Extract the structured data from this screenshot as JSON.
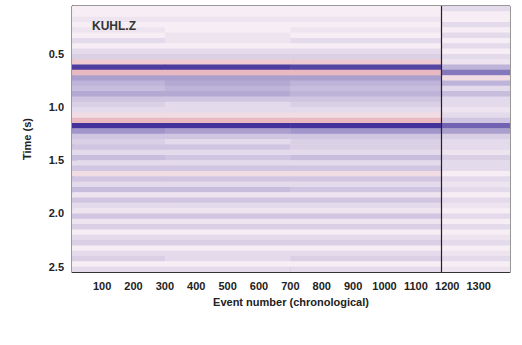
{
  "chart_data": {
    "type": "heatmap",
    "annotation": "KUHL.Z",
    "x_label": "Event number (chronological)",
    "y_label": "Time (s)",
    "xlim": [
      4,
      1400
    ],
    "ylim": [
      0.05,
      2.55
    ],
    "xticks": [
      100,
      200,
      300,
      400,
      500,
      600,
      700,
      800,
      900,
      1000,
      1100,
      1200,
      1300
    ],
    "yticks": [
      0.5,
      {
        "value": 1,
        "label": "1.0"
      },
      1.5,
      {
        "value": 2,
        "label": "2.0"
      },
      2.5
    ],
    "y_inverted": true,
    "vline": 1180,
    "color_range": [
      -1,
      1
    ],
    "x_edges": [
      4,
      300,
      700,
      1180,
      1400
    ],
    "y_edges": [
      0.05,
      0.1,
      0.15,
      0.2,
      0.25,
      0.3,
      0.35,
      0.4,
      0.45,
      0.5,
      0.55,
      0.6,
      0.65,
      0.7,
      0.75,
      0.8,
      0.85,
      0.9,
      0.95,
      1.0,
      1.05,
      1.1,
      1.15,
      1.2,
      1.25,
      1.3,
      1.35,
      1.4,
      1.45,
      1.5,
      1.55,
      1.6,
      1.65,
      1.7,
      1.75,
      1.8,
      1.85,
      1.9,
      1.95,
      2.0,
      2.05,
      2.1,
      2.15,
      2.2,
      2.25,
      2.3,
      2.35,
      2.4,
      2.45,
      2.5,
      2.55
    ],
    "cells": [
      [
        0,
        0,
        0,
        0.1
      ],
      [
        0,
        0,
        0,
        0
      ],
      [
        0.05,
        0.05,
        0.05,
        0
      ],
      [
        0,
        0,
        0,
        0.1
      ],
      [
        0.05,
        0,
        0.05,
        0
      ],
      [
        0,
        0.05,
        0,
        0.1
      ],
      [
        0.1,
        0.05,
        0.1,
        0
      ],
      [
        0,
        0,
        0,
        0.1
      ],
      [
        0.1,
        0.1,
        0.1,
        0
      ],
      [
        0.15,
        0.15,
        0.15,
        0.1
      ],
      [
        -0.2,
        -0.2,
        -0.2,
        0.05
      ],
      [
        0.9,
        0.9,
        0.85,
        0.3
      ],
      [
        -0.3,
        -0.3,
        -0.3,
        0.6
      ],
      [
        0.4,
        0.4,
        0.4,
        -0.1
      ],
      [
        0.3,
        0.35,
        0.3,
        0.3
      ],
      [
        0.25,
        0.3,
        0.25,
        0.1
      ],
      [
        0.35,
        0.35,
        0.3,
        0.25
      ],
      [
        0.2,
        0.2,
        0.2,
        0.1
      ],
      [
        0.15,
        0.1,
        0.15,
        0.1
      ],
      [
        0.1,
        0.1,
        0.1,
        0.05
      ],
      [
        -0.1,
        -0.1,
        -0.1,
        0.1
      ],
      [
        -0.3,
        -0.3,
        -0.3,
        0.2
      ],
      [
        0.95,
        0.95,
        0.95,
        0.7
      ],
      [
        0.45,
        0.4,
        0.45,
        0.4
      ],
      [
        0.2,
        0.2,
        0.2,
        0.15
      ],
      [
        0.15,
        0.1,
        0.15,
        0.1
      ],
      [
        0.2,
        0.2,
        0.15,
        0.1
      ],
      [
        0.1,
        0.1,
        0.1,
        0.05
      ],
      [
        0.25,
        0.2,
        0.25,
        0.15
      ],
      [
        0.1,
        0.1,
        0.1,
        0.1
      ],
      [
        0.2,
        0.2,
        0.2,
        0.1
      ],
      [
        -0.1,
        -0.1,
        -0.1,
        0
      ],
      [
        0.2,
        0.2,
        0.2,
        0.1
      ],
      [
        0.1,
        0.1,
        0.1,
        0.05
      ],
      [
        0.25,
        0.25,
        0.2,
        0.1
      ],
      [
        0.05,
        0.05,
        0.05,
        0
      ],
      [
        0.2,
        0.2,
        0.2,
        0.1
      ],
      [
        0.1,
        0.1,
        0.1,
        0.05
      ],
      [
        0.05,
        0.05,
        0.05,
        0
      ],
      [
        0.2,
        0.2,
        0.2,
        0.1
      ],
      [
        0.05,
        0.05,
        0.05,
        0
      ],
      [
        0.15,
        0.15,
        0.15,
        0.1
      ],
      [
        0,
        0,
        0,
        0
      ],
      [
        0.1,
        0.1,
        0.1,
        0.05
      ],
      [
        0.15,
        0.15,
        0.15,
        0.1
      ],
      [
        0,
        0,
        0,
        0
      ],
      [
        0.1,
        0.1,
        0.1,
        0.05
      ],
      [
        0.15,
        0.1,
        0.15,
        0.1
      ],
      [
        0,
        0,
        0,
        0
      ],
      [
        0.1,
        0.1,
        0.1,
        0.05
      ]
    ]
  }
}
